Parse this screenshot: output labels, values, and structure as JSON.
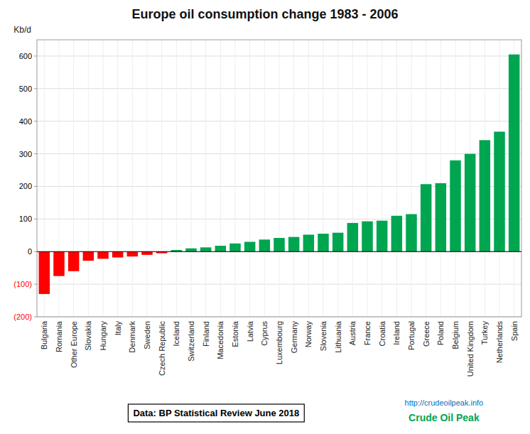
{
  "chart_data": {
    "type": "bar",
    "title": "Europe oil consumption change 1983 - 2006",
    "ylabel": "Kb/d",
    "categories": [
      "Bulgaria",
      "Romania",
      "Other Europe",
      "Slovakia",
      "Hungary",
      "Italy",
      "Denmark",
      "Sweden",
      "Czech Republic",
      "Iceland",
      "Switzerland",
      "Finland",
      "Macedonia",
      "Estonia",
      "Latvia",
      "Cyprus",
      "Luxembourg",
      "Germany",
      "Norway",
      "Slovenia",
      "Lithuania",
      "Austria",
      "France",
      "Croatia",
      "Ireland",
      "Portugal",
      "Greece",
      "Poland",
      "Belgium",
      "United Kingdom",
      "Turkey",
      "Netherlands",
      "Spain"
    ],
    "values": [
      -130,
      -75,
      -60,
      -28,
      -22,
      -18,
      -15,
      -10,
      -5,
      5,
      10,
      13,
      18,
      25,
      30,
      37,
      42,
      45,
      52,
      55,
      58,
      88,
      93,
      95,
      110,
      115,
      207,
      210,
      280,
      300,
      342,
      368,
      605
    ],
    "colors": [
      "#ff0000",
      "#ff0000",
      "#ff0000",
      "#ff0000",
      "#ff0000",
      "#ff0000",
      "#ff0000",
      "#ff0000",
      "#ff0000",
      "#00a550",
      "#00a550",
      "#00a550",
      "#00a550",
      "#00a550",
      "#00a550",
      "#00a550",
      "#00a550",
      "#00a550",
      "#00a550",
      "#00a550",
      "#00a550",
      "#00a550",
      "#00a550",
      "#00a550",
      "#00a550",
      "#00a550",
      "#00a550",
      "#00a550",
      "#00a550",
      "#00a550",
      "#00a550",
      "#00a550",
      "#00a550"
    ],
    "ylim": [
      -200,
      650
    ],
    "yticks": [
      {
        "value": -200,
        "label": "(200)"
      },
      {
        "value": -100,
        "label": "(100)"
      },
      0,
      100,
      200,
      300,
      400,
      500,
      600
    ],
    "grid": true,
    "annotations": [
      "Data: BP Statistical Review June 2018",
      "http://crudeoilpeak.info",
      "Crude Oil Peak"
    ]
  }
}
